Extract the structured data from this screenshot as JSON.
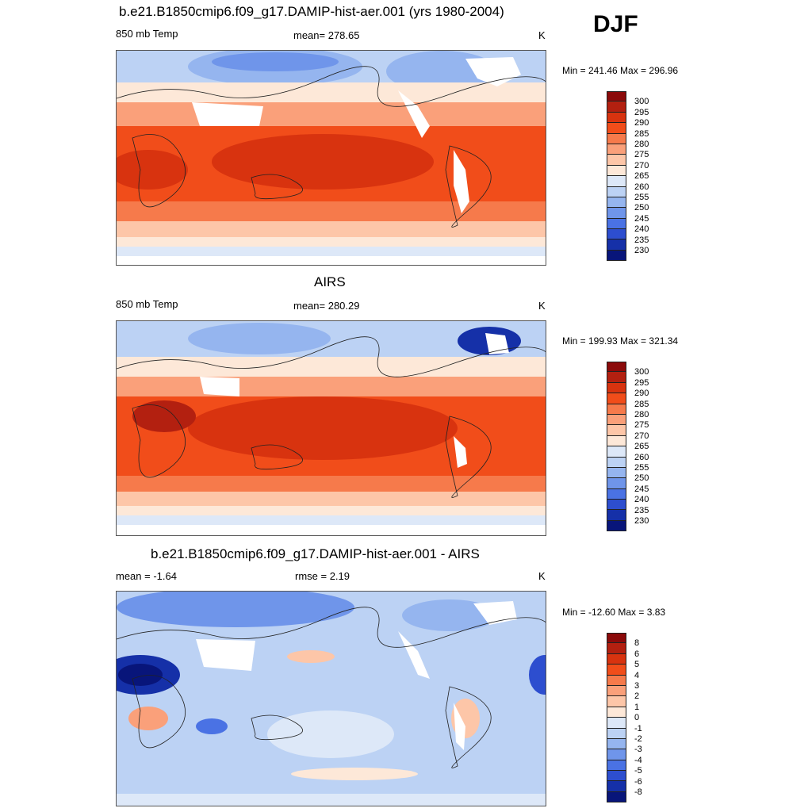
{
  "season": "DJF",
  "panels": [
    {
      "title": "b.e21.B1850cmip6.f09_g17.DAMIP-hist-aer.001 (yrs 1980-2004)",
      "left": "850 mb Temp",
      "center": "mean= 278.65",
      "units": "K",
      "minmax": "Min = 241.46 Max = 296.96",
      "scale_labels": [
        "300",
        "295",
        "290",
        "285",
        "280",
        "275",
        "270",
        "265",
        "260",
        "255",
        "250",
        "245",
        "240",
        "235",
        "230"
      ],
      "colors": [
        "#8b0a0a",
        "#b32010",
        "#d8330f",
        "#f14d1a",
        "#f67a4b",
        "#faa07a",
        "#fdc6a8",
        "#fde8d8",
        "#dde8f8",
        "#bcd2f4",
        "#95b5ef",
        "#6f95ea",
        "#4a72e4",
        "#2d4ecf",
        "#1530a8",
        "#08157a"
      ]
    },
    {
      "title": "AIRS",
      "left": "850 mb Temp",
      "center": "mean= 280.29",
      "units": "K",
      "minmax": "Min = 199.93 Max = 321.34",
      "scale_labels": [
        "300",
        "295",
        "290",
        "285",
        "280",
        "275",
        "270",
        "265",
        "260",
        "255",
        "250",
        "245",
        "240",
        "235",
        "230"
      ],
      "colors": [
        "#8b0a0a",
        "#b32010",
        "#d8330f",
        "#f14d1a",
        "#f67a4b",
        "#faa07a",
        "#fdc6a8",
        "#fde8d8",
        "#dde8f8",
        "#bcd2f4",
        "#95b5ef",
        "#6f95ea",
        "#4a72e4",
        "#2d4ecf",
        "#1530a8",
        "#08157a"
      ]
    },
    {
      "title": "b.e21.B1850cmip6.f09_g17.DAMIP-hist-aer.001 - AIRS",
      "left": "mean =  -1.64",
      "center": "rmse =   2.19",
      "units": "K",
      "minmax": "Min = -12.60 Max =   3.83",
      "scale_labels": [
        "8",
        "6",
        "5",
        "4",
        "3",
        "2",
        "1",
        "0",
        "-1",
        "-2",
        "-3",
        "-4",
        "-5",
        "-6",
        "-8"
      ],
      "colors": [
        "#8b0a0a",
        "#b32010",
        "#d8330f",
        "#f14d1a",
        "#f67a4b",
        "#faa07a",
        "#fdc6a8",
        "#fde8d8",
        "#dde8f8",
        "#bcd2f4",
        "#95b5ef",
        "#6f95ea",
        "#4a72e4",
        "#2d4ecf",
        "#1530a8",
        "#08157a"
      ]
    }
  ]
}
